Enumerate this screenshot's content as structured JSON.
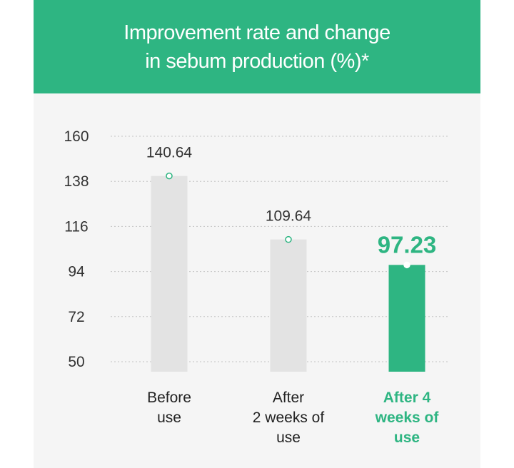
{
  "header": {
    "title_line1": "Improvement rate and change",
    "title_line2": "in sebum production (%)*"
  },
  "colors": {
    "accent": "#2eb582",
    "bar_default": "#e3e3e3",
    "grid": "#c4c4c4",
    "panel": "#f5f5f5"
  },
  "chart_data": {
    "type": "bar",
    "title": "Improvement rate and change in sebum production (%)*",
    "xlabel": "",
    "ylabel": "",
    "ylim": [
      50,
      160
    ],
    "yticks": [
      160,
      138,
      116,
      94,
      72,
      50
    ],
    "grid": true,
    "categories": [
      [
        "Before",
        "use"
      ],
      [
        "After",
        "2 weeks of",
        "use"
      ],
      [
        "After 4",
        "weeks of",
        "use"
      ]
    ],
    "values": [
      140.64,
      109.64,
      97.23
    ],
    "value_labels": [
      "140.64",
      "109.64",
      "97.23"
    ],
    "highlight_index": 2
  }
}
